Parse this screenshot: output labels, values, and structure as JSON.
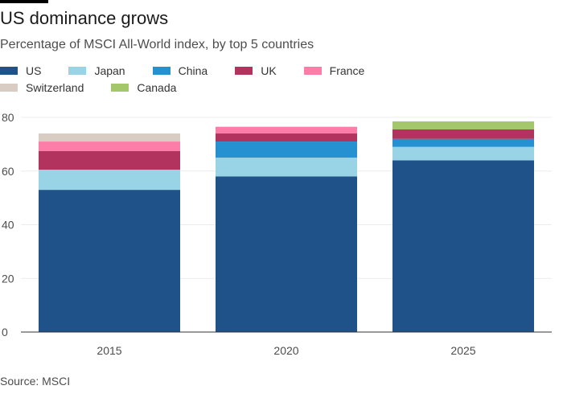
{
  "title": "US dominance grows",
  "subtitle": "Percentage of MSCI All-World index, by top 5 countries",
  "source": "Source: MSCI",
  "chart_data": {
    "type": "bar",
    "stacked": true,
    "categories": [
      "2015",
      "2020",
      "2025"
    ],
    "series": [
      {
        "name": "US",
        "color": "#1e5289",
        "values": [
          53,
          58,
          64
        ]
      },
      {
        "name": "Japan",
        "color": "#99d4e6",
        "values": [
          7.5,
          7,
          5
        ]
      },
      {
        "name": "China",
        "color": "#2591d0",
        "values": [
          0,
          6,
          3
        ]
      },
      {
        "name": "UK",
        "color": "#b1335e",
        "values": [
          7,
          3,
          3.5
        ]
      },
      {
        "name": "France",
        "color": "#fb7da8",
        "values": [
          3.5,
          2.5,
          0
        ]
      },
      {
        "name": "Switzerland",
        "color": "#d9ccc3",
        "values": [
          3,
          0,
          0
        ]
      },
      {
        "name": "Canada",
        "color": "#a5c76b",
        "values": [
          0,
          0,
          3
        ]
      }
    ],
    "yticks": [
      "0",
      "20",
      "40",
      "60",
      "80"
    ],
    "ytick_values": [
      0,
      20,
      40,
      60,
      80
    ],
    "ylim": [
      0,
      80
    ],
    "xlabel": "",
    "ylabel": "",
    "grid": true,
    "legend_position": "top"
  }
}
